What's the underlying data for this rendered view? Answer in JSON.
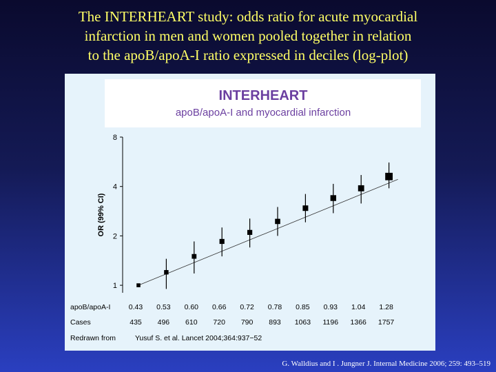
{
  "slide": {
    "title_lines": [
      "The INTERHEART study: odds ratio for acute myocardial",
      "infarction in men and women pooled together in relation",
      "to the apoB/apoA-I ratio expressed in deciles (log-plot)"
    ],
    "citation": "G. Walldius and  I . Jungner J. Internal Medicine 2006; 259: 493–519"
  },
  "colors": {
    "title": "#ffff66",
    "panel": "#e6f3fb",
    "header_box": "#ffffff",
    "header_title": "#6b3fa0",
    "header_subtitle": "#6b3fa0",
    "marker": "#000000"
  },
  "chart_data": {
    "type": "scatter",
    "title": "INTERHEART",
    "subtitle": "apoB/apoA-I and myocardial infarction",
    "ylabel": "OR (99% CI)",
    "yscale": "log",
    "yticks": [
      1,
      2,
      4,
      8
    ],
    "ylim": [
      0.9,
      8
    ],
    "row_labels": {
      "ratio": "apoB/apoA-I",
      "cases": "Cases",
      "source_prefix": "Redrawn from",
      "source": "Yusuf S. et al.  Lancet 2004;364:937−52"
    },
    "categories": [
      "0.43",
      "0.53",
      "0.60",
      "0.66",
      "0.72",
      "0.78",
      "0.85",
      "0.93",
      "1.04",
      "1.28"
    ],
    "cases": [
      "435",
      "496",
      "610",
      "720",
      "790",
      "893",
      "1063",
      "1196",
      "1366",
      "1757"
    ],
    "or": [
      1.0,
      1.2,
      1.5,
      1.85,
      2.1,
      2.45,
      2.95,
      3.4,
      3.9,
      4.6
    ],
    "ci_low": [
      1.0,
      0.95,
      1.18,
      1.5,
      1.7,
      2.0,
      2.42,
      2.75,
      3.15,
      3.9
    ],
    "ci_high": [
      1.0,
      1.45,
      1.85,
      2.25,
      2.55,
      3.0,
      3.6,
      4.15,
      4.7,
      5.6
    ],
    "marker_scale": [
      0.7,
      0.8,
      0.85,
      0.9,
      0.9,
      0.95,
      1.0,
      1.05,
      1.1,
      1.35
    ],
    "trend": {
      "start": 1.0,
      "end": 4.25
    },
    "grid": false,
    "legend": "none"
  }
}
